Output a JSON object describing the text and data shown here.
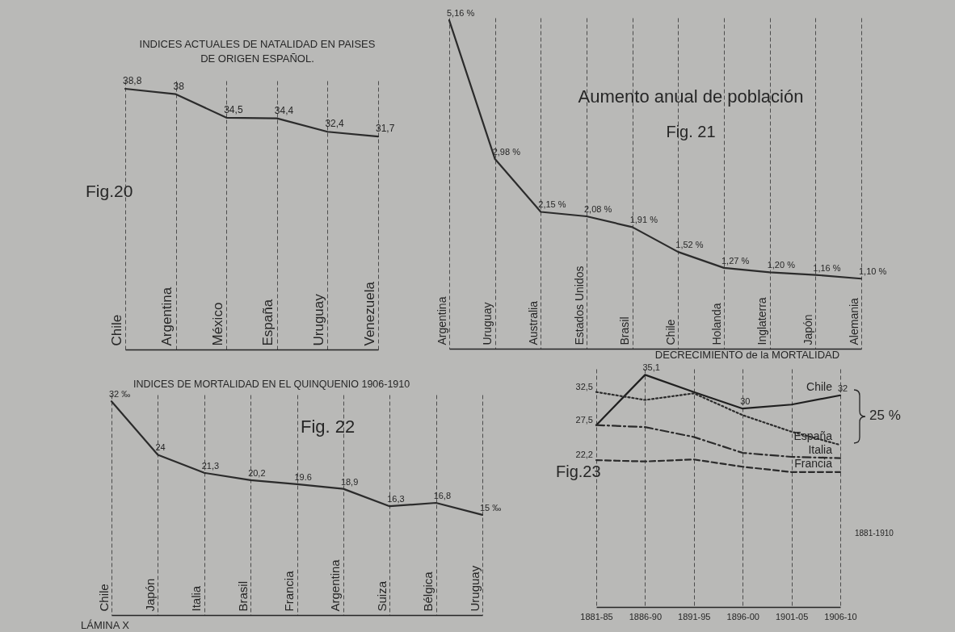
{
  "chart_data": [
    {
      "type": "line",
      "title": "INDICES ACTUALES DE NATALIDAD EN PAISES DE ORIGEN ESPAÑOL.",
      "categories": [
        "Chile",
        "Argentina",
        "México",
        "España",
        "Uruguay",
        "Venezuela"
      ],
      "values": [
        38.8,
        38,
        34.5,
        34.4,
        32.4,
        31.7
      ],
      "value_labels": [
        "38,8",
        "38",
        "34,5",
        "34,4",
        "32,4",
        "31,7"
      ],
      "color": "#2b2b2b",
      "line_style": "solid",
      "ylim": [
        0,
        40
      ],
      "grid": "x",
      "tick_labels": "x",
      "annotations": [
        "Fig.20"
      ]
    },
    {
      "type": "line",
      "title": "Aumento anual de población",
      "subtitle": "Fig. 21",
      "categories": [
        "Argentina",
        "Uruguay",
        "Australia",
        "Estados Unidos",
        "Brasil",
        "Chile",
        "Holanda",
        "Inglaterra",
        "Japón",
        "Alemania"
      ],
      "values": [
        5.16,
        2.98,
        2.15,
        2.08,
        1.91,
        1.52,
        1.27,
        1.2,
        1.16,
        1.1
      ],
      "value_labels": [
        "5,16 %",
        "2,98 %",
        "2,15 %",
        "2,08 %",
        "1,91 %",
        "1,52 %",
        "1,27 %",
        "1,20 %",
        "1,16 %",
        "1,10 %"
      ],
      "color": "#2b2b2b",
      "line_style": "solid",
      "ylim": [
        0,
        5.2
      ],
      "grid": "x",
      "tick_labels": "x"
    },
    {
      "type": "line",
      "title": "INDICES DE MORTALIDAD EN EL QUINQUENIO 1906-1910",
      "categories": [
        "Chile",
        "Japón",
        "Italia",
        "Brasil",
        "Francia",
        "Argentina",
        "Suiza",
        "Bélgica",
        "Uruguay"
      ],
      "values": [
        32,
        24,
        21.3,
        20.2,
        19.6,
        18.9,
        16.3,
        16.8,
        15
      ],
      "value_labels": [
        "32 ‰",
        "24",
        "21,3",
        "20,2",
        "19.6",
        "18,9",
        "16,3",
        "16,8",
        "15 ‰"
      ],
      "color": "#2b2b2b",
      "line_style": "solid",
      "ylim": [
        0,
        33
      ],
      "grid": "x",
      "tick_labels": "x",
      "annotations": [
        "Fig. 22",
        "LÁMINA X"
      ]
    },
    {
      "type": "line",
      "title": "DECRECIMIENTO de la MORTALIDAD",
      "categories": [
        "1881-85",
        "1886-90",
        "1891-95",
        "1896-00",
        "1901-05",
        "1906-10"
      ],
      "series": [
        {
          "name": "Chile",
          "color": "#1f1f1f",
          "line_style": "solid",
          "values": [
            27.5,
            35.1,
            32.5,
            30,
            30.6,
            32
          ],
          "value_labels": [
            "27,5",
            "35,1",
            null,
            "30",
            null,
            "32"
          ]
        },
        {
          "name": "España",
          "color": "#2b2b2b",
          "line_style": "dotted",
          "values": [
            32.5,
            31.3,
            32.3,
            29,
            26.5,
            24.5
          ],
          "value_labels": [
            "32,5",
            null,
            null,
            null,
            null,
            null
          ]
        },
        {
          "name": "Italia",
          "color": "#2b2b2b",
          "line_style": "dashdot",
          "values": [
            27.5,
            27.2,
            25.7,
            23.3,
            22.7,
            22.5
          ]
        },
        {
          "name": "Francia",
          "color": "#2b2b2b",
          "line_style": "dashed",
          "values": [
            22.2,
            22,
            22.3,
            21.2,
            20.4,
            20.4
          ],
          "value_labels": [
            "22,2",
            null,
            null,
            null,
            null,
            null
          ]
        }
      ],
      "ylim": [
        0,
        36
      ],
      "grid": "x",
      "tick_labels": "x",
      "annotations": [
        "Fig.23",
        "25 %",
        "1881-1910"
      ]
    }
  ]
}
